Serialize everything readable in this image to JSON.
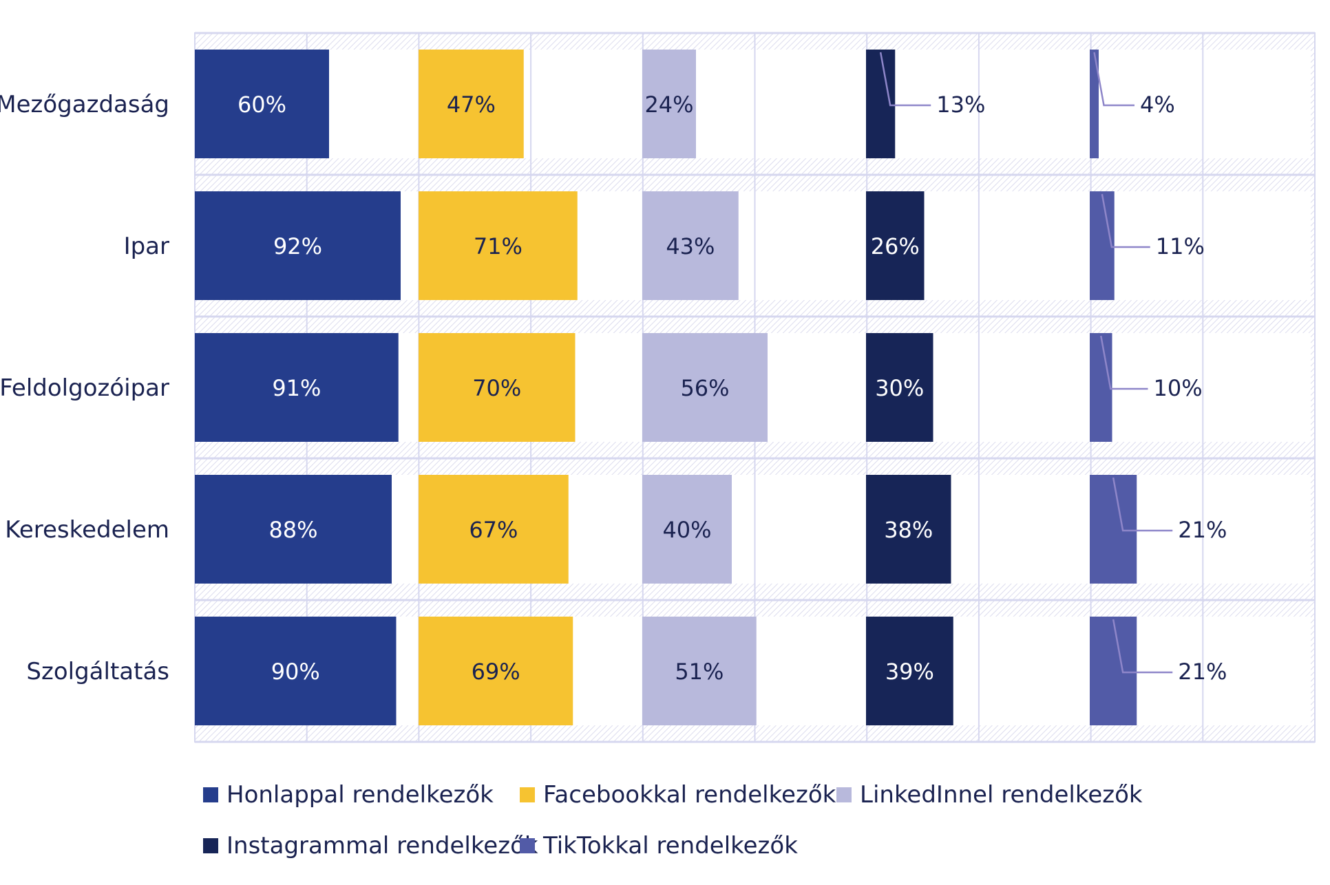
{
  "chart_data": {
    "type": "bar",
    "orientation": "horizontal-small-multiples",
    "categories": [
      "Mezőgazdaság",
      "Ipar",
      "Feldolgozóipar",
      "Kereskedelem",
      "Szolgáltatás"
    ],
    "series": [
      {
        "name": "Honlappal rendelkezők",
        "color": "#253d8c",
        "values": [
          60,
          92,
          91,
          88,
          90
        ]
      },
      {
        "name": "Facebookkal rendelkezők",
        "color": "#f6c331",
        "values": [
          47,
          71,
          70,
          67,
          69
        ]
      },
      {
        "name": "LinkedInnel rendelkezők",
        "color": "#b8b9dc",
        "values": [
          24,
          43,
          56,
          40,
          51
        ]
      },
      {
        "name": "Instagrammal rendelkezők",
        "color": "#172557",
        "values": [
          13,
          26,
          30,
          38,
          39
        ]
      },
      {
        "name": "TikTokkal rendelkezők",
        "color": "#525ba7",
        "values": [
          4,
          11,
          10,
          21,
          21
        ]
      }
    ],
    "value_suffix": "%",
    "xlim": [
      0,
      100
    ],
    "legend_position": "bottom",
    "grid": true
  },
  "legend": [
    {
      "label": "Honlappal rendelkezők",
      "color": "#253d8c"
    },
    {
      "label": "Facebookkal rendelkezők",
      "color": "#f6c331"
    },
    {
      "label": "LinkedInnel rendelkezők",
      "color": "#b8b9dc"
    },
    {
      "label": "Instagrammal rendelkezők",
      "color": "#172557"
    },
    {
      "label": "TikTokkal rendelkezők",
      "color": "#525ba7"
    }
  ],
  "colors": {
    "text": "#1a2250",
    "grid": "#d6d7ef",
    "hatch": "#e0e1f2",
    "leader": "#8e86c9",
    "light_label": "#ffffff"
  }
}
